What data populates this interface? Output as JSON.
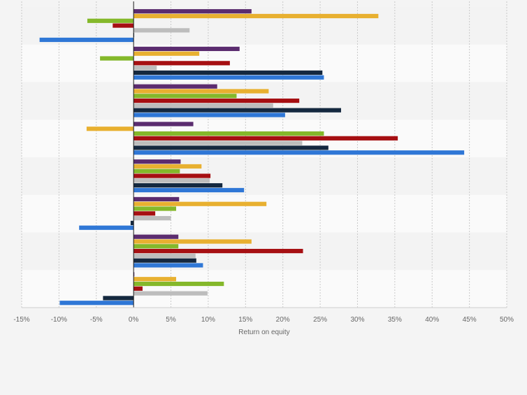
{
  "chart_data": {
    "type": "bar",
    "orientation": "horizontal",
    "xlabel": "Return on equity",
    "xlim": [
      -15,
      50
    ],
    "xticks": [
      -15,
      -10,
      -5,
      0,
      5,
      10,
      15,
      20,
      25,
      30,
      35,
      40,
      45,
      50
    ],
    "tick_labels": [
      "-15%",
      "-10%",
      "-5%",
      "0%",
      "5%",
      "10%",
      "15%",
      "20%",
      "25%",
      "30%",
      "35%",
      "40%",
      "45%",
      "50%"
    ],
    "grid": true,
    "legend": "none",
    "categories": [
      "",
      "",
      "",
      "",
      "",
      "",
      "",
      ""
    ],
    "series": [
      {
        "color": "#5b2c6f",
        "values": [
          15.8,
          14.2,
          11.2,
          8.0,
          6.3,
          6.1,
          6.0,
          0.1
        ]
      },
      {
        "color": "#e8b030",
        "values": [
          32.8,
          8.8,
          18.1,
          -6.3,
          9.1,
          17.8,
          15.8,
          5.7
        ]
      },
      {
        "color": "#84b82a",
        "values": [
          -6.2,
          -4.5,
          13.8,
          25.5,
          6.2,
          5.7,
          6.0,
          12.1
        ]
      },
      {
        "color": "#a60f12",
        "values": [
          -2.8,
          12.9,
          22.2,
          35.4,
          10.3,
          2.9,
          22.7,
          1.2
        ]
      },
      {
        "color": "#bdbdbd",
        "values": [
          7.5,
          3.1,
          18.7,
          22.6,
          10.2,
          5.0,
          8.3,
          9.9
        ]
      },
      {
        "color": "#14283f",
        "values": [
          0.0,
          25.3,
          27.8,
          26.1,
          11.9,
          -0.4,
          8.4,
          -4.1
        ]
      },
      {
        "color": "#2f77d6",
        "values": [
          -12.6,
          25.5,
          20.3,
          44.3,
          14.8,
          -7.3,
          9.3,
          -9.9
        ]
      }
    ]
  }
}
